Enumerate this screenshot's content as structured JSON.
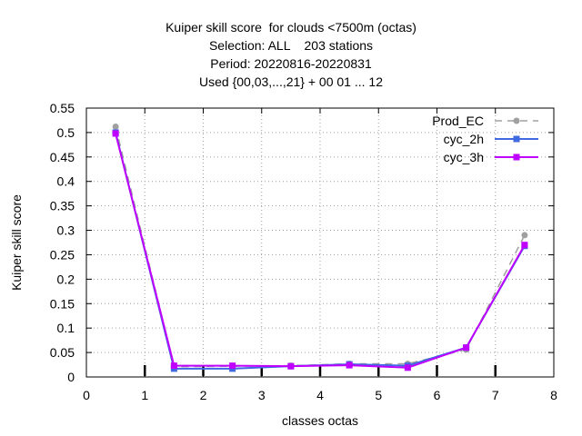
{
  "title_lines": [
    "Kuiper skill score  for clouds <7500m (octas)",
    "Selection: ALL    203 stations",
    "Period: 20220816-20220831",
    "Used {00,03,...,21} + 00 01 ... 12"
  ],
  "chart_data": {
    "type": "line",
    "xlabel": "classes octas",
    "ylabel": "Kuiper skill score",
    "xlim": [
      0,
      8
    ],
    "ylim": [
      0,
      0.55
    ],
    "xticks": [
      0,
      1,
      2,
      3,
      4,
      5,
      6,
      7,
      8
    ],
    "yticks": [
      0,
      0.05,
      0.1,
      0.15,
      0.2,
      0.25,
      0.3,
      0.35,
      0.4,
      0.45,
      0.5,
      0.55
    ],
    "ytick_labels": [
      "0",
      "0.05",
      "0.1",
      "0.15",
      "0.2",
      "0.25",
      "0.3",
      "0.35",
      "0.4",
      "0.45",
      "0.5",
      "0.55"
    ],
    "grid": true,
    "legend_position": "top-right",
    "series": [
      {
        "name": "Prod_EC",
        "color": "#a0a0a0",
        "dashed": true,
        "marker": "circle",
        "x": [
          0.5,
          1.5,
          2.5,
          3.5,
          4.5,
          5.5,
          6.5,
          7.5
        ],
        "y": [
          0.512,
          0.021,
          0.022,
          0.023,
          0.027,
          0.027,
          0.056,
          0.29
        ]
      },
      {
        "name": "cyc_2h",
        "color": "#4169e1",
        "dashed": false,
        "marker": "square",
        "x": [
          0.5,
          1.5,
          2.5,
          3.5,
          4.5,
          5.5,
          6.5,
          7.5
        ],
        "y": [
          0.5,
          0.017,
          0.017,
          0.022,
          0.026,
          0.023,
          0.06,
          0.268
        ]
      },
      {
        "name": "cyc_3h",
        "color": "#c000ff",
        "dashed": false,
        "marker": "square",
        "x": [
          0.5,
          1.5,
          2.5,
          3.5,
          4.5,
          5.5,
          6.5,
          7.5
        ],
        "y": [
          0.498,
          0.023,
          0.023,
          0.022,
          0.024,
          0.019,
          0.06,
          0.27
        ]
      }
    ]
  }
}
